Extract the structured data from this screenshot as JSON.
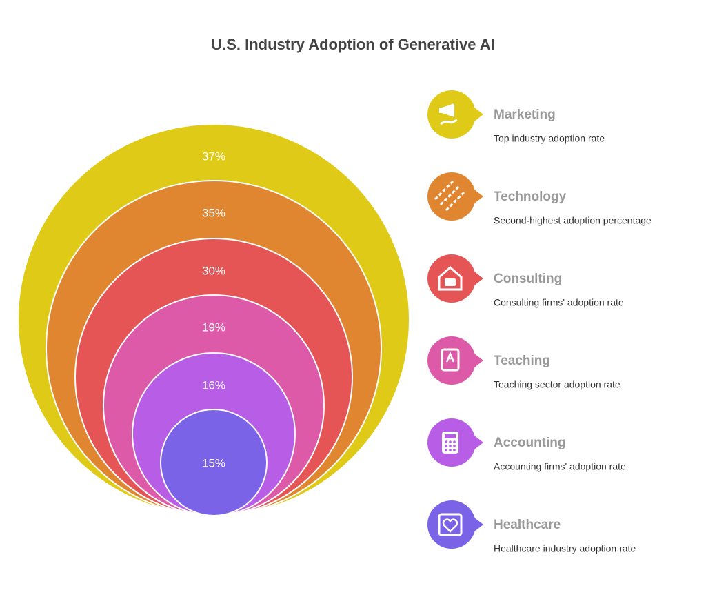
{
  "title": "U.S. Industry Adoption of Generative AI",
  "items": [
    {
      "percent": "37%",
      "name": "Marketing",
      "description": "Top industry adoption rate",
      "color": "#dfcb17"
    },
    {
      "percent": "35%",
      "name": "Technology",
      "description": "Second-highest adoption percentage",
      "color": "#e08631"
    },
    {
      "percent": "30%",
      "name": "Consulting",
      "description": "Consulting firms' adoption rate",
      "color": "#e55555"
    },
    {
      "percent": "19%",
      "name": "Teaching",
      "description": "Teaching sector adoption rate",
      "color": "#dd5aa8"
    },
    {
      "percent": "16%",
      "name": "Accounting",
      "description": "Accounting firms' adoption rate",
      "color": "#b85ee6"
    },
    {
      "percent": "15%",
      "name": "Healthcare",
      "description": "Healthcare industry adoption rate",
      "color": "#7b63e8"
    }
  ]
}
